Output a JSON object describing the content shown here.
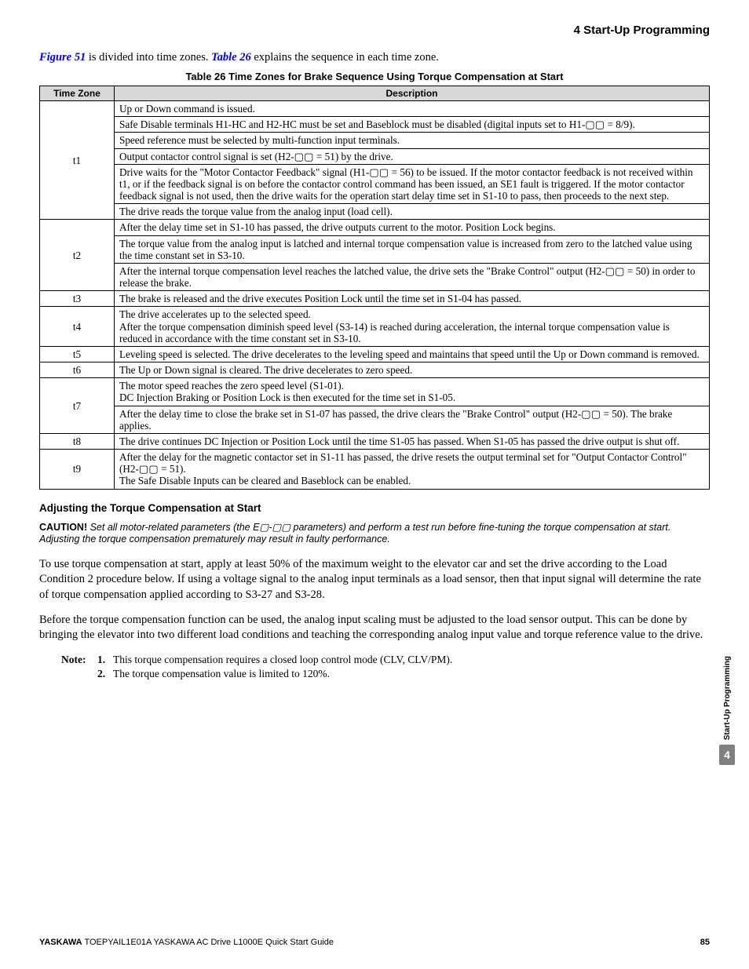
{
  "header": {
    "title": "4  Start-Up Programming"
  },
  "intro": {
    "fig_ref": "Figure 51",
    "mid": " is divided into time zones. ",
    "tab_ref": "Table 26",
    "tail": " explains the sequence in each time zone."
  },
  "table": {
    "caption": "Table 26  Time Zones for Brake Sequence Using Torque Compensation at Start",
    "headers": {
      "tz": "Time Zone",
      "desc": "Description"
    },
    "groups": [
      {
        "tz": "t1",
        "rows": [
          "Up or Down command is issued.",
          "Safe Disable terminals H1-HC and H2-HC must be set and Baseblock must be disabled (digital inputs set to H1-▢▢ = 8/9).",
          "Speed reference must be selected by multi-function input terminals.",
          "Output contactor control signal is set (H2-▢▢ = 51) by the drive.",
          "Drive waits for the \"Motor Contactor Feedback\" signal (H1-▢▢ = 56) to be issued. If the motor contactor feedback is not received within t1, or if the feedback signal is on before the contactor control command has been issued, an SE1 fault is triggered. If the motor contactor feedback signal is not used, then the drive waits for the operation start delay time set in S1-10 to pass, then proceeds to the next step.",
          "The drive reads the torque value from the analog input (load cell)."
        ]
      },
      {
        "tz": "t2",
        "rows": [
          "After the delay time set in S1-10 has passed, the drive outputs current to the motor. Position Lock begins.",
          "The torque value from the analog input is latched and internal torque compensation value is increased from zero to the latched value using the time constant set in S3-10.",
          "After the internal torque compensation level reaches the latched value, the drive sets the \"Brake Control\" output (H2-▢▢ = 50) in order to release the brake."
        ]
      },
      {
        "tz": "t3",
        "rows": [
          "The brake is released and the drive executes Position Lock until the time set in S1-04 has passed."
        ]
      },
      {
        "tz": "t4",
        "rows": [
          "The drive accelerates up to the selected speed.\nAfter the torque compensation diminish speed level (S3-14) is reached during acceleration, the internal torque compensation value is reduced in accordance with the time constant set in S3-10."
        ]
      },
      {
        "tz": "t5",
        "rows": [
          "Leveling speed is selected. The drive decelerates to the leveling speed and maintains that speed until the Up or Down command is removed."
        ]
      },
      {
        "tz": "t6",
        "rows": [
          "The Up or Down signal is cleared. The drive decelerates to zero speed."
        ]
      },
      {
        "tz": "t7",
        "rows": [
          "The motor speed reaches the zero speed level (S1-01).\nDC Injection Braking or Position Lock is then executed for the time set in S1-05.",
          "After the delay time to close the brake set in S1-07 has passed, the drive clears the \"Brake Control\" output (H2-▢▢ = 50). The brake applies."
        ]
      },
      {
        "tz": "t8",
        "rows": [
          "The drive continues DC Injection or Position Lock until the time S1-05 has passed. When S1-05 has passed the drive output is shut off."
        ]
      },
      {
        "tz": "t9",
        "rows": [
          "After the delay for the magnetic contactor set in S1-11 has passed, the drive resets the output terminal set for \"Output Contactor Control\" (H2-▢▢ = 51).\nThe Safe Disable Inputs can be cleared and Baseblock can be enabled."
        ]
      }
    ]
  },
  "subheading": "Adjusting the Torque Compensation at Start",
  "caution": {
    "label": "CAUTION!",
    "body": "Set all motor-related parameters (the E▢-▢▢ parameters) and perform a test run before fine-tuning the torque compensation at start. Adjusting the torque compensation prematurely may result in faulty performance."
  },
  "paragraphs": [
    "To use torque compensation at start, apply at least 50% of the maximum weight to the elevator car and set the drive according to the Load Condition 2 procedure below. If using a voltage signal to the analog input terminals as a load sensor, then that input signal will determine the rate of torque compensation applied according to S3-27 and S3-28.",
    "Before the torque compensation function can be used, the analog input scaling must be adjusted to the load sensor output. This can be done by bringing the elevator into two different load conditions and teaching the corresponding analog input value and torque reference value to the drive."
  ],
  "notes": {
    "label": "Note:",
    "items": [
      {
        "n": "1.",
        "text": "This torque compensation requires a closed loop control mode (CLV, CLV/PM)."
      },
      {
        "n": "2.",
        "text": "The torque compensation value is limited to 120%."
      }
    ]
  },
  "sidetab": {
    "label": "Start-Up Programming",
    "num": "4"
  },
  "footer": {
    "brand": "YASKAWA",
    "doc": " TOEPYAIL1E01A YASKAWA AC Drive L1000E Quick Start Guide",
    "page": "85"
  }
}
